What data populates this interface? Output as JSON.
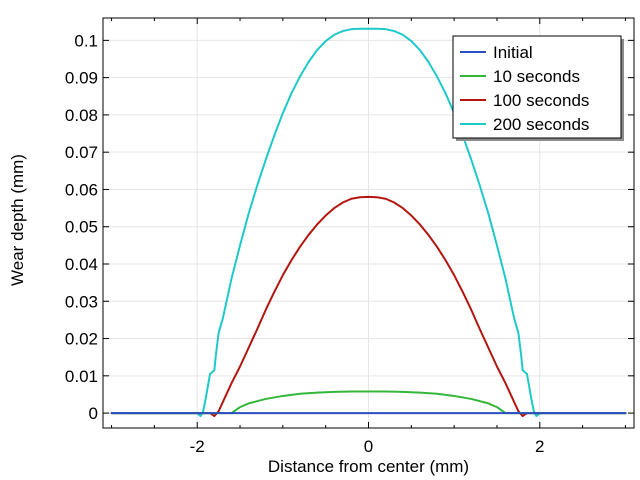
{
  "chart_data": {
    "type": "line",
    "xlabel": "Distance from center (mm)",
    "ylabel": "Wear depth (mm)",
    "xlim": [
      -3.1,
      3.1
    ],
    "ylim": [
      -0.004,
      0.106
    ],
    "xticks": [
      -2,
      0,
      2
    ],
    "xtick_labels": [
      "-2",
      "0",
      "2"
    ],
    "yticks": [
      0,
      0.01,
      0.02,
      0.03,
      0.04,
      0.05,
      0.06,
      0.07,
      0.08,
      0.09,
      0.1
    ],
    "ytick_labels": [
      "0",
      "0.01",
      "0.02",
      "0.03",
      "0.04",
      "0.05",
      "0.06",
      "0.07",
      "0.08",
      "0.09",
      "0.1"
    ],
    "grid": true,
    "legend_position": "top-right",
    "series": [
      {
        "name": "Initial",
        "color": "#2a4ec2",
        "x": [
          -3.0,
          3.0
        ],
        "y": [
          0,
          0
        ]
      },
      {
        "name": "10 seconds",
        "color": "#35b63b",
        "x": [
          -3.0,
          -1.6,
          -1.5,
          -1.4,
          -1.2,
          -1.0,
          -0.8,
          -0.6,
          -0.4,
          -0.2,
          0,
          0.2,
          0.4,
          0.6,
          0.8,
          1.0,
          1.2,
          1.4,
          1.5,
          1.6,
          3.0
        ],
        "y": [
          0,
          0,
          0.0016,
          0.0026,
          0.0038,
          0.0046,
          0.0052,
          0.0055,
          0.0057,
          0.0058,
          0.0058,
          0.0058,
          0.0057,
          0.0055,
          0.0052,
          0.0046,
          0.0038,
          0.0026,
          0.0016,
          0,
          0
        ]
      },
      {
        "name": "100 seconds",
        "color": "#b3150f",
        "x": [
          -3.0,
          -1.85,
          -1.8,
          -1.75,
          -1.72,
          -1.68,
          -1.6,
          -1.5,
          -1.4,
          -1.3,
          -1.2,
          -1.1,
          -1.0,
          -0.9,
          -0.8,
          -0.7,
          -0.6,
          -0.5,
          -0.4,
          -0.3,
          -0.2,
          -0.1,
          0,
          0.1,
          0.2,
          0.3,
          0.4,
          0.5,
          0.6,
          0.7,
          0.8,
          0.9,
          1.0,
          1.1,
          1.2,
          1.3,
          1.4,
          1.5,
          1.6,
          1.68,
          1.72,
          1.75,
          1.8,
          1.85,
          3.0
        ],
        "y": [
          0,
          0,
          -0.0008,
          0.0005,
          0.002,
          0.004,
          0.008,
          0.0125,
          0.0175,
          0.0225,
          0.0277,
          0.0325,
          0.037,
          0.041,
          0.0446,
          0.0478,
          0.0506,
          0.053,
          0.055,
          0.0565,
          0.0575,
          0.0579,
          0.058,
          0.0579,
          0.0575,
          0.0565,
          0.055,
          0.053,
          0.0506,
          0.0478,
          0.0446,
          0.041,
          0.037,
          0.0325,
          0.0277,
          0.0225,
          0.0175,
          0.0125,
          0.008,
          0.004,
          0.002,
          0.0005,
          -0.0008,
          0,
          0
        ]
      },
      {
        "name": "200 seconds",
        "color": "#1fc9c9",
        "x": [
          -3.0,
          -2.0,
          -1.96,
          -1.93,
          -1.9,
          -1.85,
          -1.8,
          -1.78,
          -1.75,
          -1.7,
          -1.6,
          -1.5,
          -1.4,
          -1.3,
          -1.2,
          -1.1,
          -1.0,
          -0.9,
          -0.8,
          -0.7,
          -0.6,
          -0.5,
          -0.4,
          -0.3,
          -0.2,
          -0.1,
          0,
          0.1,
          0.2,
          0.3,
          0.4,
          0.5,
          0.6,
          0.7,
          0.8,
          0.9,
          1.0,
          1.1,
          1.2,
          1.3,
          1.4,
          1.5,
          1.6,
          1.7,
          1.75,
          1.78,
          1.8,
          1.85,
          1.9,
          1.93,
          1.96,
          2.0,
          3.0
        ],
        "y": [
          0,
          0,
          -0.0008,
          0.0005,
          0.004,
          0.0105,
          0.0115,
          0.016,
          0.0215,
          0.0255,
          0.036,
          0.045,
          0.0535,
          0.061,
          0.068,
          0.0745,
          0.0805,
          0.0858,
          0.0903,
          0.0942,
          0.0974,
          0.0998,
          0.1015,
          0.1025,
          0.103,
          0.1031,
          0.1031,
          0.1031,
          0.103,
          0.1025,
          0.1015,
          0.0998,
          0.0974,
          0.0942,
          0.0903,
          0.0858,
          0.0805,
          0.0745,
          0.068,
          0.061,
          0.0535,
          0.045,
          0.036,
          0.0255,
          0.0215,
          0.016,
          0.0115,
          0.0105,
          0.004,
          0.0005,
          -0.0008,
          0,
          0
        ]
      }
    ]
  }
}
